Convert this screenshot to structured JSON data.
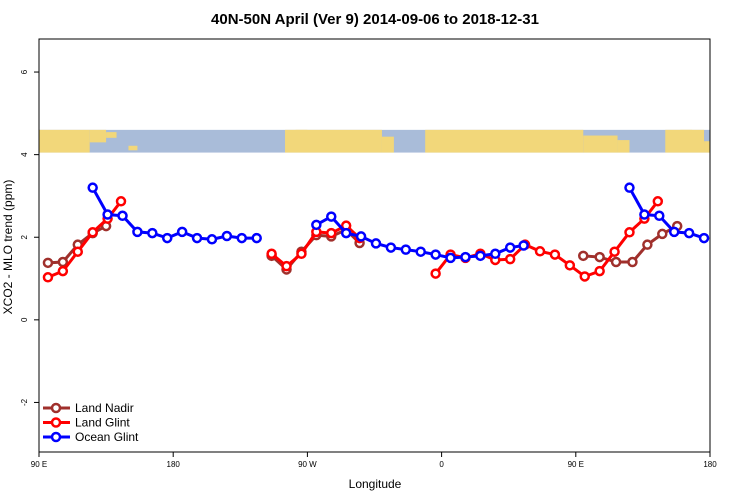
{
  "chart_data": {
    "type": "line",
    "title": "40N-50N April (Ver 9)   2014-09-06 to 2018-12-31",
    "xlabel": "Longitude",
    "ylabel": "XCO2 - MLO trend (ppm)",
    "xlim": [
      90,
      540
    ],
    "ylim": [
      -3.2,
      6.8
    ],
    "x_ticks": [
      {
        "value": 90,
        "label": "90 E"
      },
      {
        "value": 180,
        "label": "180"
      },
      {
        "value": 270,
        "label": "90 W"
      },
      {
        "value": 360,
        "label": "0"
      },
      {
        "value": 450,
        "label": "90 E"
      },
      {
        "value": 540,
        "label": "180"
      }
    ],
    "y_ticks": [
      {
        "value": -2,
        "label": "-2"
      },
      {
        "value": 0,
        "label": "0"
      },
      {
        "value": 2,
        "label": "2"
      },
      {
        "value": 4,
        "label": "4"
      },
      {
        "value": 6,
        "label": "6"
      }
    ],
    "map_strip": {
      "ymin": 4.05,
      "ymax": 4.6,
      "land_color": "#f2d77a",
      "ocean_color": "#a9bcd9"
    },
    "legend_position": "bottom-left",
    "series": [
      {
        "name": "Land Nadir",
        "color": "#a0302c",
        "segments": [
          [
            [
              96,
              1.38
            ],
            [
              106,
              1.4
            ],
            [
              116,
              1.82
            ],
            [
              126,
              2.1
            ],
            [
              135,
              2.27
            ]
          ],
          [
            [
              246,
              1.55
            ],
            [
              256,
              1.22
            ],
            [
              266,
              1.65
            ],
            [
              276,
              2.05
            ],
            [
              286,
              2.02
            ],
            [
              296,
              2.18
            ],
            [
              305,
              1.86
            ]
          ],
          [
            [
              455,
              1.55
            ],
            [
              466,
              1.52
            ],
            [
              477,
              1.4
            ],
            [
              488,
              1.4
            ],
            [
              498,
              1.82
            ],
            [
              508,
              2.08
            ],
            [
              518,
              2.27
            ]
          ]
        ]
      },
      {
        "name": "Land Glint",
        "color": "#ff0000",
        "segments": [
          [
            [
              96,
              1.03
            ],
            [
              106,
              1.18
            ],
            [
              116,
              1.65
            ],
            [
              126,
              2.12
            ],
            [
              136,
              2.45
            ],
            [
              145,
              2.87
            ]
          ],
          [
            [
              246,
              1.6
            ],
            [
              256,
              1.3
            ],
            [
              266,
              1.6
            ],
            [
              276,
              2.13
            ],
            [
              286,
              2.1
            ],
            [
              296,
              2.28
            ],
            [
              305,
              1.98
            ]
          ],
          [
            [
              356,
              1.12
            ],
            [
              366,
              1.58
            ],
            [
              376,
              1.5
            ],
            [
              386,
              1.6
            ],
            [
              396,
              1.45
            ],
            [
              406,
              1.47
            ],
            [
              416,
              1.82
            ],
            [
              426,
              1.66
            ],
            [
              436,
              1.58
            ],
            [
              446,
              1.32
            ],
            [
              456,
              1.05
            ],
            [
              466,
              1.18
            ],
            [
              476,
              1.65
            ],
            [
              486,
              2.12
            ],
            [
              496,
              2.45
            ],
            [
              505,
              2.87
            ]
          ]
        ]
      },
      {
        "name": "Ocean Glint",
        "color": "#0000ff",
        "segments": [
          [
            [
              126,
              3.2
            ],
            [
              136,
              2.55
            ],
            [
              146,
              2.52
            ],
            [
              156,
              2.13
            ],
            [
              166,
              2.1
            ],
            [
              176,
              1.98
            ],
            [
              186,
              2.13
            ],
            [
              196,
              1.98
            ],
            [
              206,
              1.95
            ],
            [
              216,
              2.03
            ],
            [
              226,
              1.98
            ],
            [
              236,
              1.98
            ]
          ],
          [
            [
              276,
              2.3
            ],
            [
              286,
              2.5
            ],
            [
              296,
              2.1
            ],
            [
              306,
              2.02
            ],
            [
              316,
              1.85
            ],
            [
              326,
              1.75
            ],
            [
              336,
              1.7
            ],
            [
              346,
              1.65
            ],
            [
              356,
              1.58
            ],
            [
              366,
              1.5
            ],
            [
              376,
              1.52
            ],
            [
              386,
              1.55
            ],
            [
              396,
              1.6
            ],
            [
              406,
              1.75
            ],
            [
              415,
              1.8
            ]
          ],
          [
            [
              486,
              3.2
            ],
            [
              496,
              2.55
            ],
            [
              506,
              2.52
            ],
            [
              516,
              2.13
            ],
            [
              526,
              2.1
            ],
            [
              536,
              1.98
            ]
          ]
        ]
      }
    ]
  }
}
